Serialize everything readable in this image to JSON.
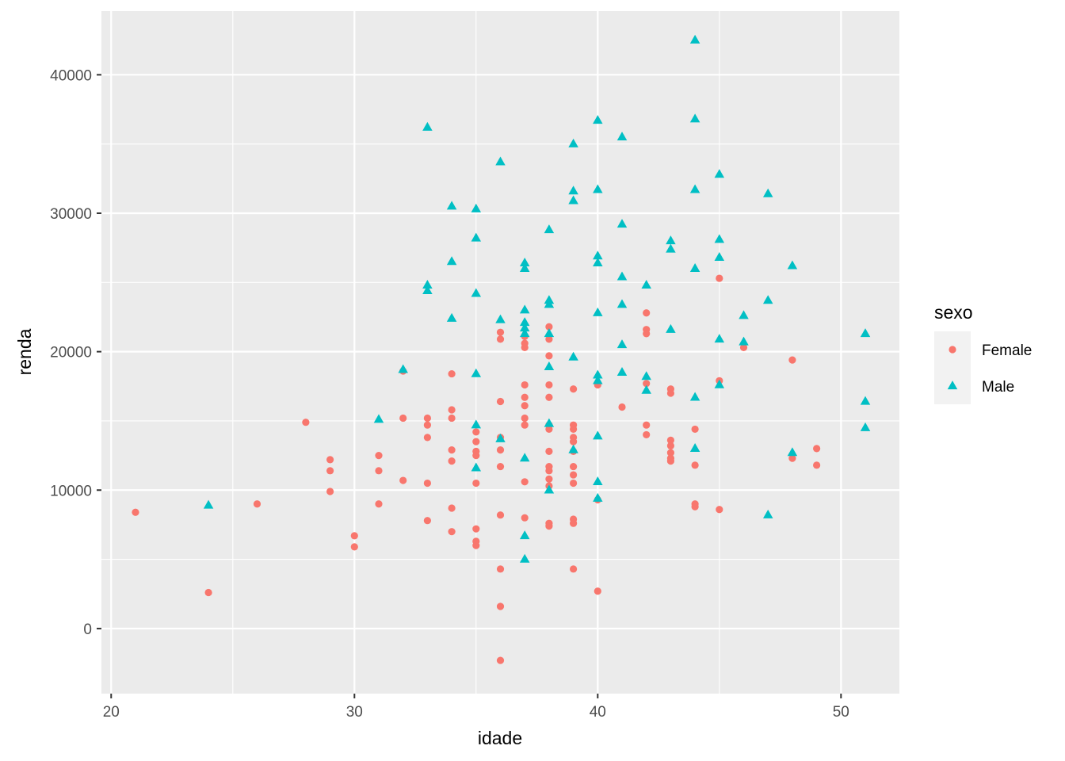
{
  "chart_data": {
    "type": "scatter",
    "xlabel": "idade",
    "ylabel": "renda",
    "xlim": [
      19.6,
      52.4
    ],
    "ylim": [
      -4700,
      44600
    ],
    "x_ticks": [
      20,
      30,
      40,
      50
    ],
    "y_ticks": [
      0,
      10000,
      20000,
      30000,
      40000
    ],
    "x_tick_labels": [
      "20",
      "30",
      "40",
      "50"
    ],
    "y_tick_labels": [
      "0",
      "10000",
      "20000",
      "30000",
      "40000"
    ],
    "grid": true,
    "legend": {
      "title": "sexo",
      "position": "right"
    },
    "series": [
      {
        "name": "Female",
        "marker": "circle",
        "color": "#F8766D",
        "points": [
          [
            21,
            8400
          ],
          [
            24,
            2600
          ],
          [
            26,
            9000
          ],
          [
            28,
            14900
          ],
          [
            29,
            12200
          ],
          [
            29,
            11400
          ],
          [
            29,
            9900
          ],
          [
            30,
            6700
          ],
          [
            30,
            5900
          ],
          [
            31,
            12500
          ],
          [
            31,
            11400
          ],
          [
            31,
            9000
          ],
          [
            32,
            18600
          ],
          [
            32,
            15200
          ],
          [
            32,
            10700
          ],
          [
            33,
            15200
          ],
          [
            33,
            14700
          ],
          [
            33,
            13800
          ],
          [
            33,
            10500
          ],
          [
            33,
            7800
          ],
          [
            34,
            18400
          ],
          [
            34,
            15800
          ],
          [
            34,
            15200
          ],
          [
            34,
            12900
          ],
          [
            34,
            12100
          ],
          [
            34,
            8700
          ],
          [
            34,
            7000
          ],
          [
            35,
            14200
          ],
          [
            35,
            13500
          ],
          [
            35,
            12800
          ],
          [
            35,
            12500
          ],
          [
            35,
            10500
          ],
          [
            35,
            7200
          ],
          [
            35,
            6300
          ],
          [
            35,
            6000
          ],
          [
            36,
            21400
          ],
          [
            36,
            20900
          ],
          [
            36,
            16400
          ],
          [
            36,
            13800
          ],
          [
            36,
            12900
          ],
          [
            36,
            11700
          ],
          [
            36,
            8200
          ],
          [
            36,
            4300
          ],
          [
            36,
            1600
          ],
          [
            36,
            -2300
          ],
          [
            37,
            21100
          ],
          [
            37,
            20600
          ],
          [
            37,
            20300
          ],
          [
            37,
            17600
          ],
          [
            37,
            16700
          ],
          [
            37,
            16100
          ],
          [
            37,
            15200
          ],
          [
            37,
            14700
          ],
          [
            37,
            10600
          ],
          [
            37,
            8000
          ],
          [
            38,
            21800
          ],
          [
            38,
            20900
          ],
          [
            38,
            19700
          ],
          [
            38,
            17600
          ],
          [
            38,
            16700
          ],
          [
            38,
            14700
          ],
          [
            38,
            14400
          ],
          [
            38,
            12800
          ],
          [
            38,
            11700
          ],
          [
            38,
            11400
          ],
          [
            38,
            10800
          ],
          [
            38,
            10300
          ],
          [
            38,
            7600
          ],
          [
            38,
            7400
          ],
          [
            39,
            17300
          ],
          [
            39,
            14700
          ],
          [
            39,
            14400
          ],
          [
            39,
            13800
          ],
          [
            39,
            13500
          ],
          [
            39,
            12800
          ],
          [
            39,
            11700
          ],
          [
            39,
            11100
          ],
          [
            39,
            10500
          ],
          [
            39,
            7900
          ],
          [
            39,
            7600
          ],
          [
            39,
            4300
          ],
          [
            40,
            17600
          ],
          [
            40,
            9300
          ],
          [
            40,
            2700
          ],
          [
            41,
            16000
          ],
          [
            42,
            22800
          ],
          [
            42,
            21600
          ],
          [
            42,
            21300
          ],
          [
            42,
            17700
          ],
          [
            42,
            14700
          ],
          [
            42,
            14000
          ],
          [
            43,
            17300
          ],
          [
            43,
            17000
          ],
          [
            43,
            13600
          ],
          [
            43,
            13200
          ],
          [
            43,
            12700
          ],
          [
            43,
            12300
          ],
          [
            43,
            12100
          ],
          [
            44,
            14400
          ],
          [
            44,
            11800
          ],
          [
            44,
            9000
          ],
          [
            44,
            8800
          ],
          [
            45,
            25300
          ],
          [
            45,
            17900
          ],
          [
            45,
            8600
          ],
          [
            46,
            20300
          ],
          [
            48,
            19400
          ],
          [
            48,
            12300
          ],
          [
            49,
            13000
          ],
          [
            49,
            11800
          ]
        ]
      },
      {
        "name": "Male",
        "marker": "triangle",
        "color": "#00BFC4",
        "points": [
          [
            24,
            8900
          ],
          [
            31,
            15100
          ],
          [
            32,
            18700
          ],
          [
            33,
            36200
          ],
          [
            33,
            24800
          ],
          [
            33,
            24400
          ],
          [
            34,
            30500
          ],
          [
            34,
            26500
          ],
          [
            34,
            22400
          ],
          [
            35,
            30300
          ],
          [
            35,
            28200
          ],
          [
            35,
            24200
          ],
          [
            35,
            18400
          ],
          [
            35,
            14700
          ],
          [
            35,
            11600
          ],
          [
            36,
            33700
          ],
          [
            36,
            22300
          ],
          [
            36,
            13700
          ],
          [
            37,
            26400
          ],
          [
            37,
            26000
          ],
          [
            37,
            23000
          ],
          [
            37,
            22100
          ],
          [
            37,
            21700
          ],
          [
            37,
            21300
          ],
          [
            37,
            12300
          ],
          [
            37,
            6700
          ],
          [
            37,
            5000
          ],
          [
            38,
            28800
          ],
          [
            38,
            23700
          ],
          [
            38,
            23400
          ],
          [
            38,
            21300
          ],
          [
            38,
            18900
          ],
          [
            38,
            14800
          ],
          [
            38,
            10000
          ],
          [
            39,
            35000
          ],
          [
            39,
            31600
          ],
          [
            39,
            30900
          ],
          [
            39,
            19600
          ],
          [
            39,
            12900
          ],
          [
            40,
            36700
          ],
          [
            40,
            31700
          ],
          [
            40,
            26900
          ],
          [
            40,
            26400
          ],
          [
            40,
            22800
          ],
          [
            40,
            18300
          ],
          [
            40,
            17900
          ],
          [
            40,
            13900
          ],
          [
            40,
            10600
          ],
          [
            40,
            9400
          ],
          [
            41,
            35500
          ],
          [
            41,
            29200
          ],
          [
            41,
            25400
          ],
          [
            41,
            23400
          ],
          [
            41,
            20500
          ],
          [
            41,
            18500
          ],
          [
            42,
            24800
          ],
          [
            42,
            18200
          ],
          [
            42,
            17200
          ],
          [
            43,
            28000
          ],
          [
            43,
            27400
          ],
          [
            43,
            21600
          ],
          [
            44,
            42500
          ],
          [
            44,
            36800
          ],
          [
            44,
            31700
          ],
          [
            44,
            26000
          ],
          [
            44,
            16700
          ],
          [
            44,
            13000
          ],
          [
            45,
            32800
          ],
          [
            45,
            28100
          ],
          [
            45,
            26800
          ],
          [
            45,
            20900
          ],
          [
            45,
            17600
          ],
          [
            46,
            22600
          ],
          [
            46,
            20700
          ],
          [
            47,
            31400
          ],
          [
            47,
            23700
          ],
          [
            47,
            8200
          ],
          [
            48,
            26200
          ],
          [
            48,
            12700
          ],
          [
            51,
            21300
          ],
          [
            51,
            16400
          ],
          [
            51,
            14500
          ]
        ]
      }
    ]
  }
}
